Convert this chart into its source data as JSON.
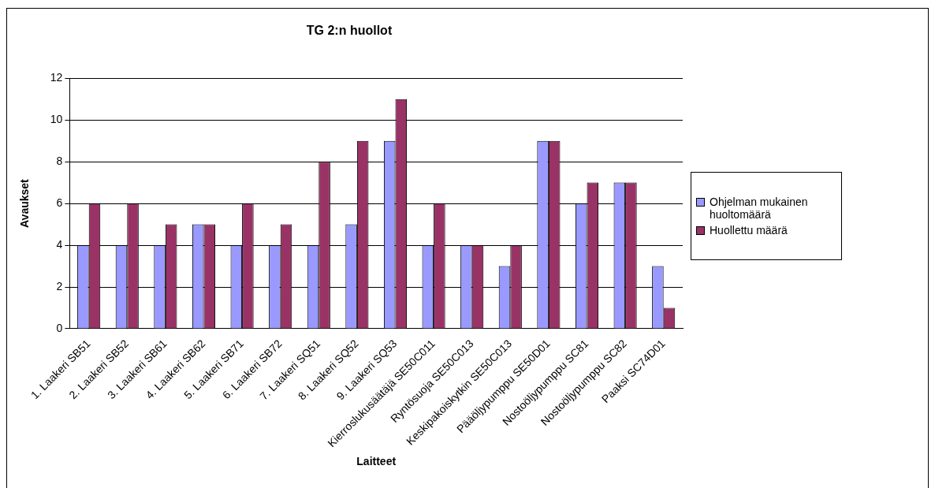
{
  "chart_data": {
    "type": "bar",
    "title": "TG 2:n huollot",
    "xlabel": "Laitteet",
    "ylabel": "Avaukset",
    "categories": [
      "1. Laakeri SB51",
      "2. Laakeri SB52",
      "3. Laakeri SB61",
      "4. Laakeri SB62",
      "5. Laakeri SB71",
      "6. Laakeri SB72",
      "7. Laakeri SQ51",
      "8. Laakeri SQ52",
      "9. Laakeri SQ53",
      "Kierroslukusäätäjä SE50C011",
      "Ryntösuoja SE50C013",
      "Keskipakoiskytkin SE50C013",
      "Pääöljypumppu SE50D01",
      "Nostoöljypumppu SC81",
      "Nostoöljypumppu SC82",
      "Paaksi SC74D01"
    ],
    "series": [
      {
        "name": "Ohjelman mukainen huoltomäärä",
        "color": "#9999ff",
        "values": [
          4,
          4,
          4,
          5,
          4,
          4,
          4,
          5,
          9,
          4,
          4,
          3,
          9,
          6,
          7,
          3
        ]
      },
      {
        "name": "Huollettu määrä",
        "color": "#993366",
        "values": [
          6,
          6,
          5,
          5,
          6,
          5,
          8,
          9,
          11,
          6,
          4,
          4,
          9,
          7,
          7,
          1
        ]
      }
    ],
    "ylim": [
      0,
      12
    ],
    "yticks": [
      0,
      2,
      4,
      6,
      8,
      10,
      12
    ],
    "grid": "y",
    "legend": "right"
  }
}
